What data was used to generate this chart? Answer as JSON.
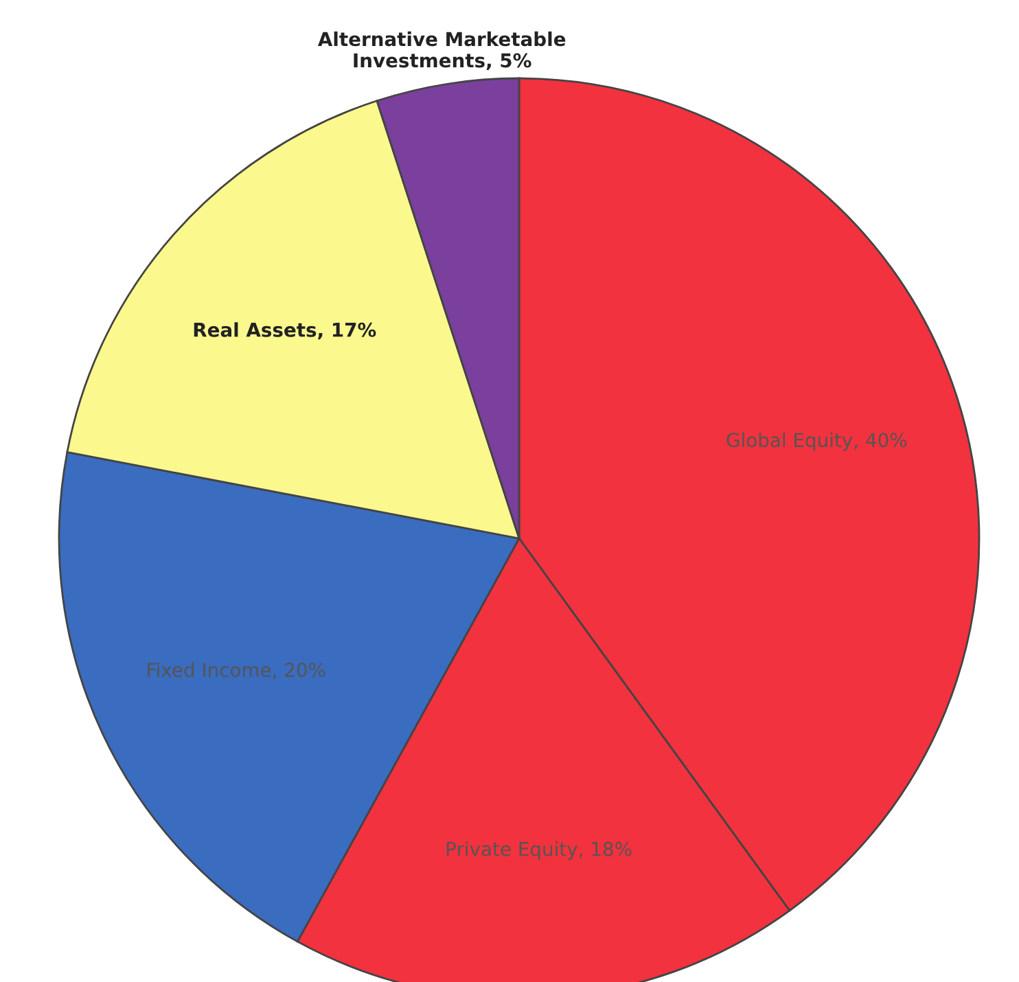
{
  "chart_data": {
    "type": "pie",
    "categories": [
      "Global Equity",
      "Private Equity",
      "Fixed Income",
      "Real Assets",
      "Alternative Marketable Investments"
    ],
    "values": [
      40,
      18,
      20,
      17,
      5
    ],
    "value_labels": [
      "40%",
      "18%",
      "20%",
      "17%",
      "5%"
    ],
    "colors": [
      "#f2323e",
      "#f2323e",
      "#3a6cc0",
      "#fbf98e",
      "#7b3f9e"
    ]
  }
}
